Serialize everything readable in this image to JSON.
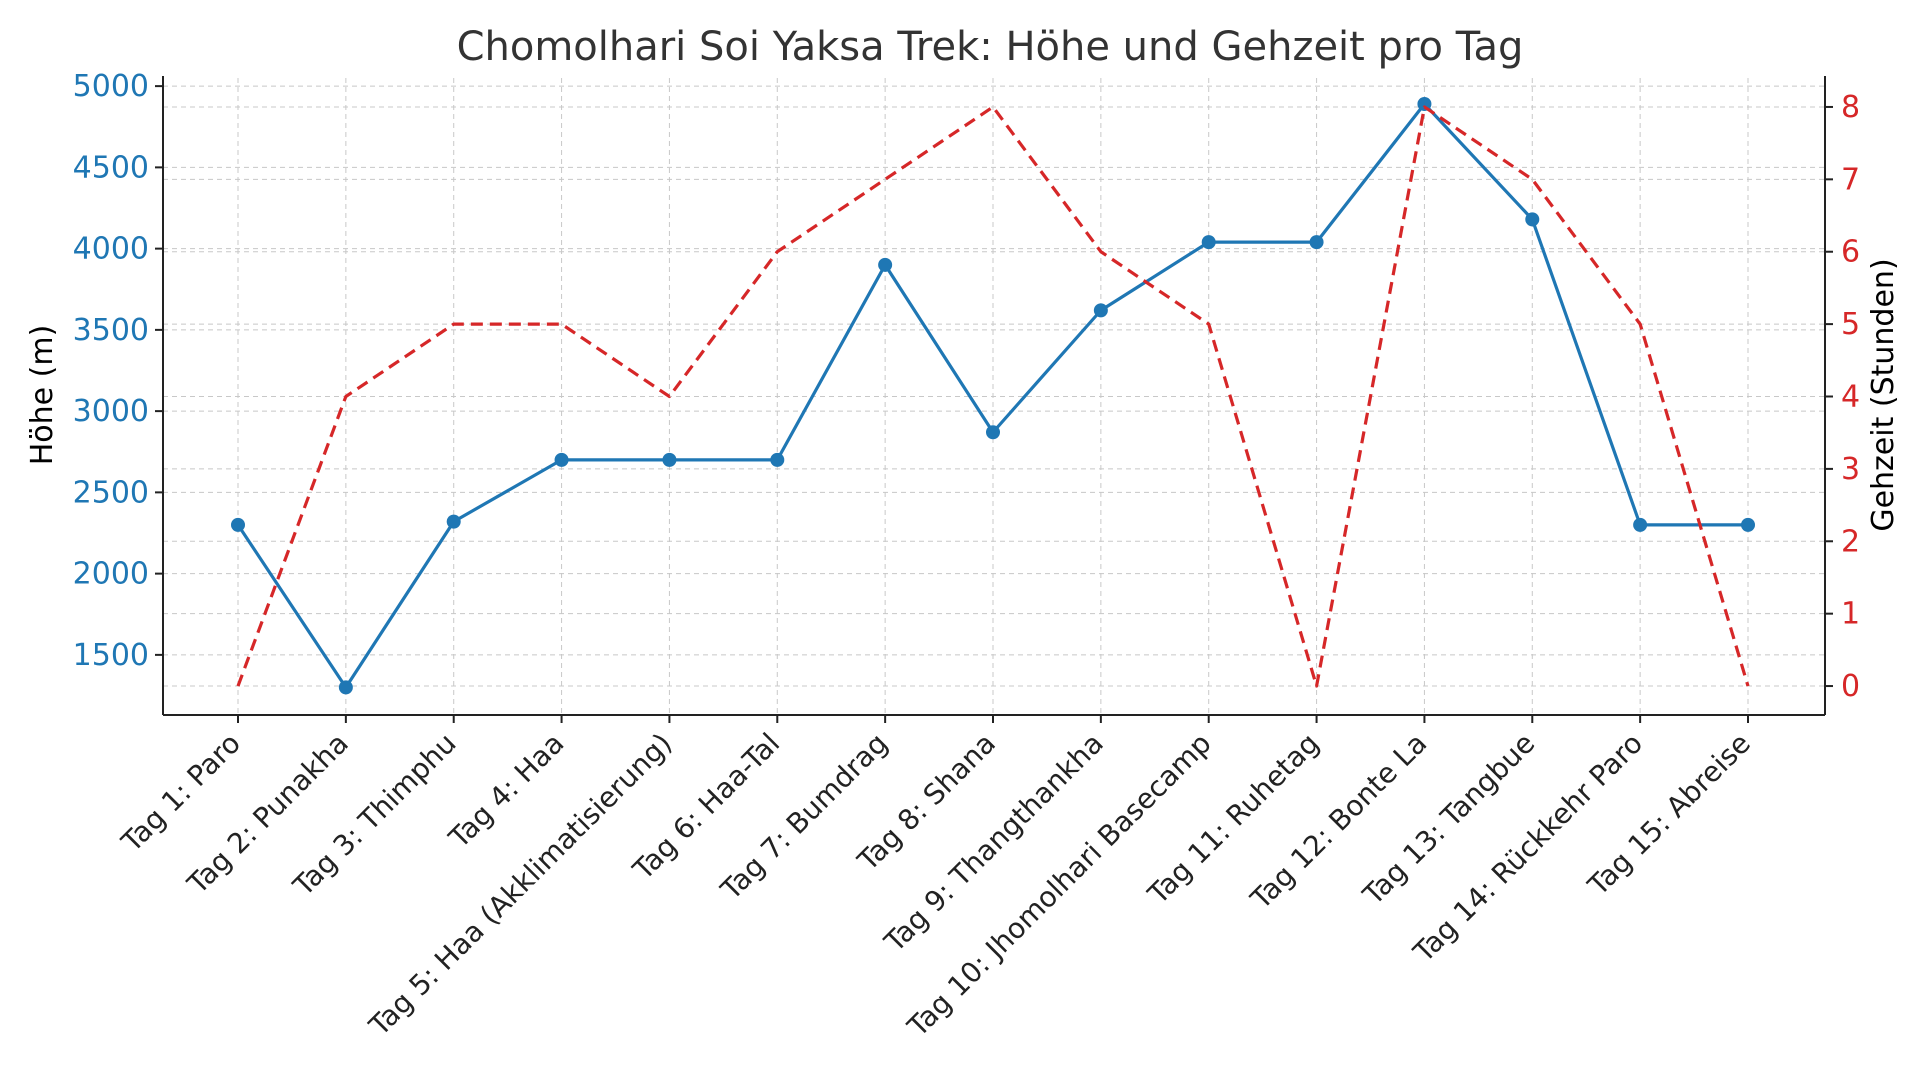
{
  "chart_data": {
    "type": "line",
    "title": "Chomolhari Soi Yaksa Trek: Höhe und Gehzeit pro Tag",
    "categories": [
      "Tag 1: Paro",
      "Tag 2: Punakha",
      "Tag 3: Thimphu",
      "Tag 4: Haa",
      "Tag 5: Haa (Akklimatisierung)",
      "Tag 6: Haa-Tal",
      "Tag 7: Bumdrag",
      "Tag 8: Shana",
      "Tag 9: Thangthankha",
      "Tag 10: Jhomolhari Basecamp",
      "Tag 11: Ruhetag",
      "Tag 12: Bonte La",
      "Tag 13: Tangbue",
      "Tag 14: Rückkehr Paro",
      "Tag 15: Abreise"
    ],
    "series": [
      {
        "name": "Höhe (m)",
        "axis": "left",
        "color": "#1f77b4",
        "style": "solid-markers",
        "values": [
          2300,
          1300,
          2320,
          2700,
          2700,
          2700,
          3900,
          2870,
          3620,
          4040,
          4040,
          4890,
          4180,
          2300,
          2300
        ]
      },
      {
        "name": "Gehzeit (Stunden)",
        "axis": "right",
        "color": "#d62728",
        "style": "dashed",
        "values": [
          0,
          4,
          5,
          5,
          4,
          6,
          7,
          8,
          6,
          5,
          0,
          8,
          7,
          5,
          0
        ]
      }
    ],
    "y_left": {
      "label": "Höhe (m)",
      "range": [
        1130,
        5050
      ],
      "ticks": [
        1500,
        2000,
        2500,
        3000,
        3500,
        4000,
        4500,
        5000
      ],
      "color": "#1f77b4"
    },
    "y_right": {
      "label": "Gehzeit (Stunden)",
      "range": [
        -0.4,
        8.4
      ],
      "ticks": [
        0,
        1,
        2,
        3,
        4,
        5,
        6,
        7,
        8
      ],
      "color": "#d62728"
    },
    "grid": true
  }
}
